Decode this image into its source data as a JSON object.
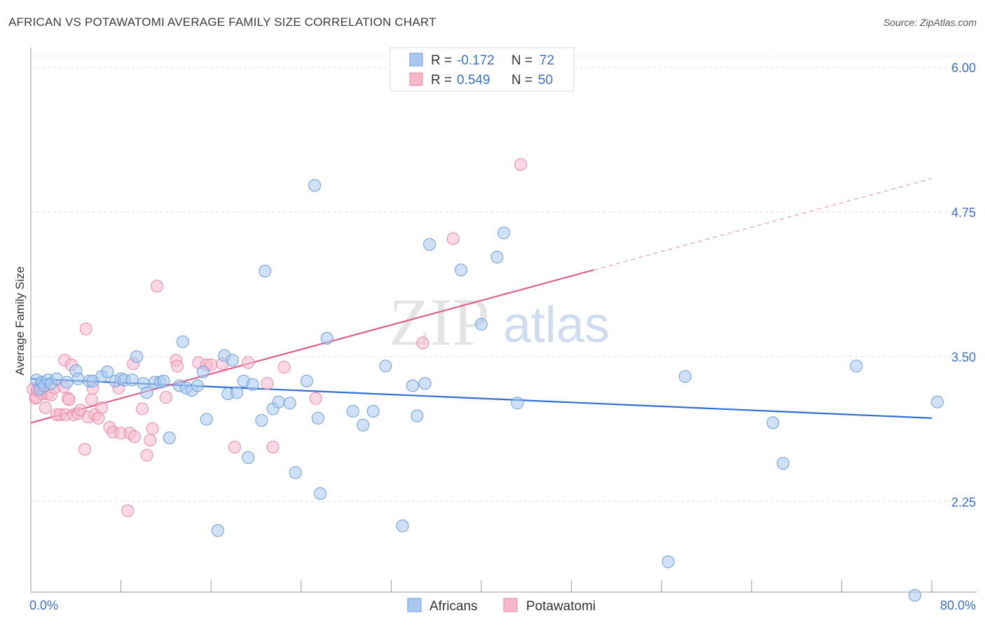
{
  "header": {
    "title": "AFRICAN VS POTAWATOMI AVERAGE FAMILY SIZE CORRELATION CHART",
    "source": "Source: ZipAtlas.com"
  },
  "watermark": {
    "zip": "ZIP",
    "atlas": "atlas"
  },
  "legend": {
    "r_label": "R =",
    "n_label": "N =",
    "rows": [
      {
        "r": "-0.172",
        "n": "72",
        "color": "#a8c8f0"
      },
      {
        "r": "0.549",
        "n": "50",
        "color": "#f8b8cc"
      }
    ]
  },
  "chart_data": {
    "type": "scatter",
    "title": "AFRICAN VS POTAWATOMI AVERAGE FAMILY SIZE CORRELATION CHART",
    "xlabel": "",
    "ylabel": "Average Family Size",
    "xlim": [
      0,
      80
    ],
    "ylim": [
      1.5,
      6.1
    ],
    "x_tick_labels": [
      "0.0%",
      "80.0%"
    ],
    "y_ticks": [
      2.25,
      3.5,
      4.75,
      6.0
    ],
    "y_tick_labels": [
      "2.25",
      "3.50",
      "4.75",
      "6.00"
    ],
    "grid": true,
    "legend_position": "top-center",
    "series": [
      {
        "name": "Africans",
        "color": "#6d9de0",
        "fill": "#a8c8f0",
        "trend": {
          "x": [
            0,
            80
          ],
          "y": [
            3.31,
            2.97
          ]
        },
        "points": [
          [
            0.5,
            3.3
          ],
          [
            0.8,
            3.22
          ],
          [
            1.0,
            3.28
          ],
          [
            1.2,
            3.25
          ],
          [
            1.5,
            3.3
          ],
          [
            1.8,
            3.27
          ],
          [
            2.3,
            3.31
          ],
          [
            3.2,
            3.28
          ],
          [
            4.0,
            3.38
          ],
          [
            4.2,
            3.31
          ],
          [
            5.2,
            3.29
          ],
          [
            5.5,
            3.29
          ],
          [
            6.3,
            3.33
          ],
          [
            6.8,
            3.37
          ],
          [
            7.5,
            3.29
          ],
          [
            8.0,
            3.31
          ],
          [
            8.3,
            3.3
          ],
          [
            9.0,
            3.3
          ],
          [
            9.4,
            3.5
          ],
          [
            10.0,
            3.27
          ],
          [
            10.3,
            3.19
          ],
          [
            11.0,
            3.28
          ],
          [
            11.5,
            3.28
          ],
          [
            11.8,
            3.29
          ],
          [
            12.3,
            2.8
          ],
          [
            13.2,
            3.25
          ],
          [
            13.5,
            3.63
          ],
          [
            13.8,
            3.23
          ],
          [
            14.3,
            3.21
          ],
          [
            14.8,
            3.25
          ],
          [
            15.3,
            3.37
          ],
          [
            15.6,
            2.96
          ],
          [
            16.6,
            2.0
          ],
          [
            17.2,
            3.51
          ],
          [
            17.5,
            3.18
          ],
          [
            17.9,
            3.47
          ],
          [
            18.3,
            3.19
          ],
          [
            18.9,
            3.29
          ],
          [
            19.3,
            2.63
          ],
          [
            19.7,
            3.26
          ],
          [
            20.5,
            2.95
          ],
          [
            20.8,
            4.24
          ],
          [
            21.5,
            3.05
          ],
          [
            22.0,
            3.11
          ],
          [
            23.0,
            3.1
          ],
          [
            23.5,
            2.5
          ],
          [
            24.5,
            3.29
          ],
          [
            25.2,
            4.98
          ],
          [
            25.5,
            2.97
          ],
          [
            25.7,
            2.32
          ],
          [
            26.3,
            3.66
          ],
          [
            28.6,
            3.03
          ],
          [
            29.5,
            2.91
          ],
          [
            30.4,
            3.03
          ],
          [
            31.5,
            3.42
          ],
          [
            33.0,
            2.04
          ],
          [
            33.9,
            3.25
          ],
          [
            34.3,
            2.99
          ],
          [
            35.0,
            3.27
          ],
          [
            35.4,
            4.47
          ],
          [
            38.2,
            4.25
          ],
          [
            40.0,
            3.78
          ],
          [
            41.4,
            4.36
          ],
          [
            42.0,
            4.57
          ],
          [
            43.2,
            3.1
          ],
          [
            56.6,
            1.73
          ],
          [
            58.1,
            3.33
          ],
          [
            65.9,
            2.93
          ],
          [
            66.8,
            2.58
          ],
          [
            73.3,
            3.42
          ],
          [
            78.5,
            1.44
          ],
          [
            80.5,
            3.11
          ]
        ]
      },
      {
        "name": "Potawatomi",
        "color": "#e88aa8",
        "fill": "#f8b8cc",
        "trend": {
          "x": [
            0,
            50
          ],
          "y": [
            2.93,
            4.25
          ]
        },
        "trend_ext": {
          "x": [
            50,
            80
          ],
          "y": [
            4.25,
            5.04
          ]
        },
        "points": [
          [
            0.2,
            3.22
          ],
          [
            0.4,
            3.14
          ],
          [
            0.5,
            3.15
          ],
          [
            0.6,
            3.21
          ],
          [
            0.8,
            3.25
          ],
          [
            1.0,
            3.18
          ],
          [
            1.3,
            3.06
          ],
          [
            1.5,
            3.18
          ],
          [
            1.8,
            3.17
          ],
          [
            2.1,
            3.23
          ],
          [
            2.3,
            3.0
          ],
          [
            2.6,
            3.0
          ],
          [
            2.9,
            3.24
          ],
          [
            3.0,
            3.47
          ],
          [
            3.1,
            3.0
          ],
          [
            3.3,
            3.14
          ],
          [
            3.4,
            3.13
          ],
          [
            3.6,
            3.43
          ],
          [
            3.8,
            3.0
          ],
          [
            4.2,
            3.01
          ],
          [
            4.4,
            3.04
          ],
          [
            4.8,
            2.7
          ],
          [
            4.9,
            3.74
          ],
          [
            5.1,
            2.98
          ],
          [
            5.4,
            3.13
          ],
          [
            5.5,
            3.23
          ],
          [
            5.7,
            3.0
          ],
          [
            6.0,
            2.97
          ],
          [
            6.3,
            3.06
          ],
          [
            7.0,
            2.89
          ],
          [
            7.3,
            2.85
          ],
          [
            7.8,
            3.23
          ],
          [
            8.0,
            2.84
          ],
          [
            8.6,
            2.17
          ],
          [
            8.8,
            2.84
          ],
          [
            9.1,
            3.44
          ],
          [
            9.2,
            2.81
          ],
          [
            9.9,
            3.05
          ],
          [
            10.3,
            2.65
          ],
          [
            10.6,
            2.78
          ],
          [
            10.8,
            2.88
          ],
          [
            11.2,
            4.11
          ],
          [
            12.0,
            3.15
          ],
          [
            12.9,
            3.47
          ],
          [
            13.0,
            3.42
          ],
          [
            14.9,
            3.45
          ],
          [
            15.6,
            3.43
          ],
          [
            16.0,
            3.43
          ],
          [
            17.0,
            3.44
          ],
          [
            18.1,
            2.72
          ]
        ]
      }
    ],
    "extra_pink_points": [
      [
        19.3,
        3.45
      ],
      [
        21.0,
        3.27
      ],
      [
        21.5,
        2.72
      ],
      [
        22.5,
        3.41
      ],
      [
        25.3,
        3.14
      ],
      [
        34.8,
        3.62
      ],
      [
        37.5,
        4.52
      ],
      [
        43.5,
        5.16
      ]
    ]
  },
  "bottom_legend": [
    {
      "label": "Africans",
      "color": "#a8c8f0"
    },
    {
      "label": "Potawatomi",
      "color": "#f8b8cc"
    }
  ]
}
